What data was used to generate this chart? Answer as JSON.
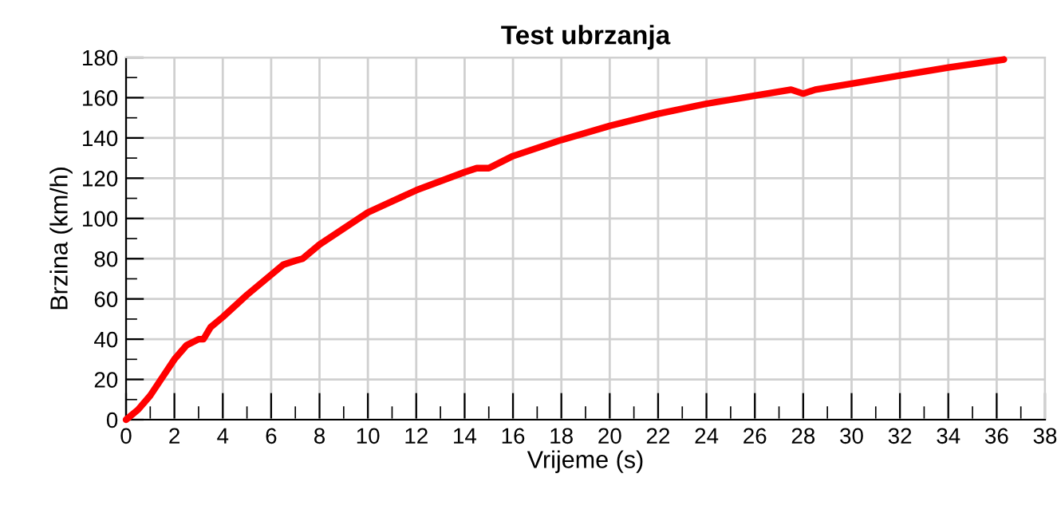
{
  "chart_data": {
    "type": "line",
    "title": "Test ubrzanja",
    "xlabel": "Vrijeme (s)",
    "ylabel": "Brzina (km/h)",
    "x": [
      0,
      0.5,
      1,
      1.5,
      2,
      2.5,
      3,
      3.2,
      3.5,
      4,
      5,
      6,
      6.5,
      7,
      7.3,
      8,
      10,
      12,
      14,
      14.5,
      15,
      16,
      18,
      20,
      22,
      24,
      26,
      27,
      27.5,
      28,
      28.5,
      30,
      32,
      34,
      36.3
    ],
    "series": [
      {
        "color": "#ff0000",
        "values": [
          0,
          5,
          12,
          21,
          30,
          37,
          40,
          40,
          46,
          51,
          62,
          72,
          77,
          79,
          80,
          87,
          103,
          114,
          123,
          125,
          125,
          131,
          139,
          146,
          152,
          157,
          161,
          163,
          164,
          162,
          164,
          167,
          171,
          175,
          179
        ]
      }
    ],
    "xlim": [
      0,
      38
    ],
    "xticks": [
      0,
      2,
      4,
      6,
      8,
      10,
      12,
      14,
      16,
      18,
      20,
      22,
      24,
      26,
      28,
      30,
      32,
      34,
      36,
      38
    ],
    "ylim": [
      0,
      180
    ],
    "yticks": [
      0,
      20,
      40,
      60,
      80,
      100,
      120,
      140,
      160,
      180
    ],
    "grid": true,
    "marker": "none",
    "line_style": "solid"
  }
}
